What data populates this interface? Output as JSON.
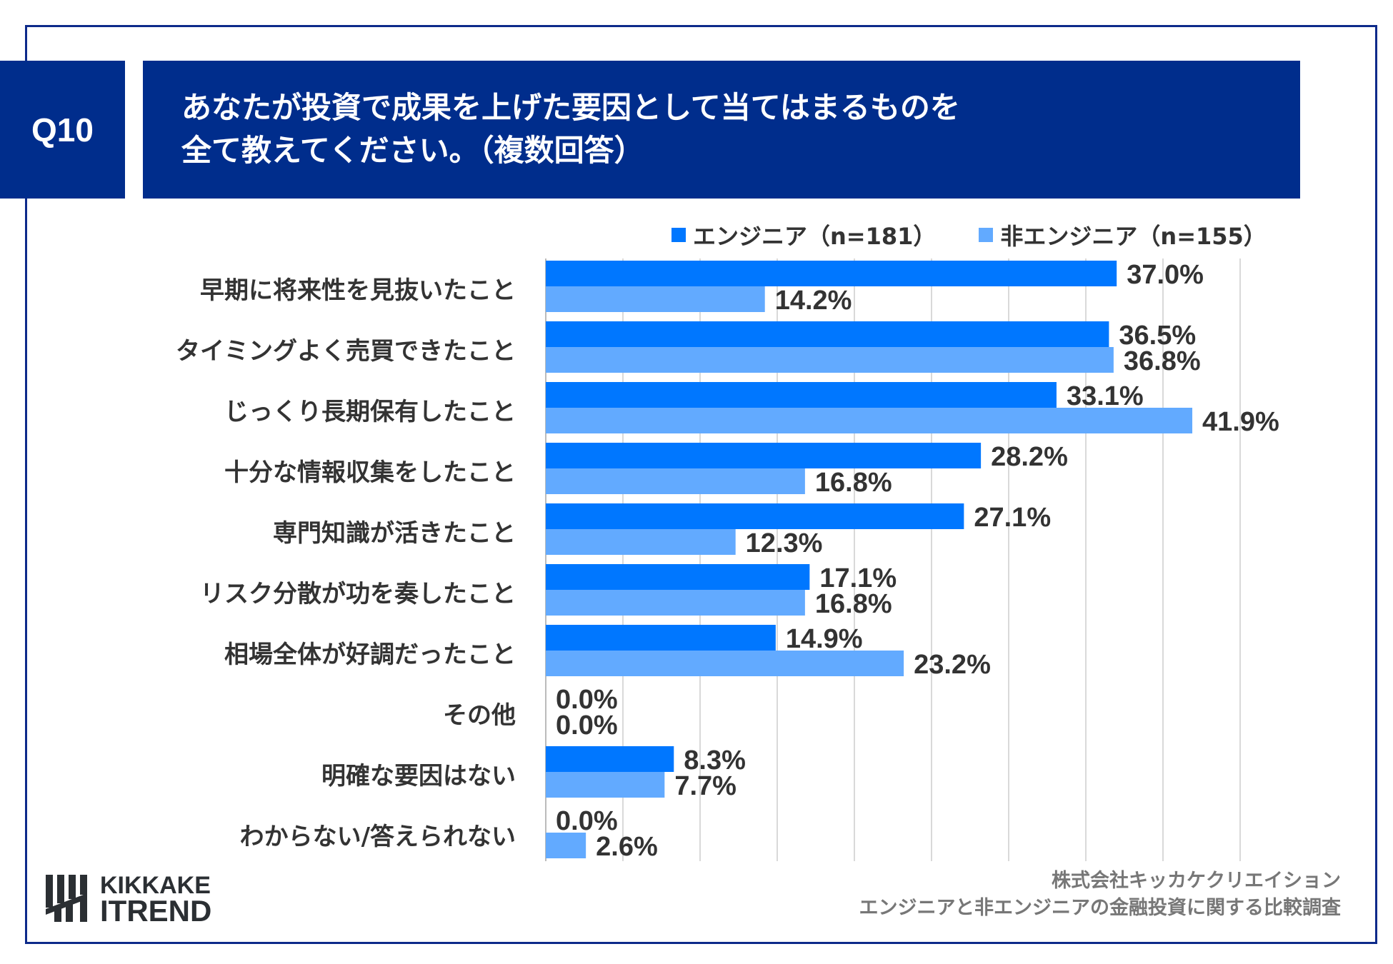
{
  "question": {
    "number": "Q10",
    "title_lines": [
      "あなたが投資で成果を上げた要因として当てはまるものを",
      "全て教えてください。（複数回答）"
    ]
  },
  "colors": {
    "header": "#002d8c",
    "engineer": "#0077ff",
    "non_engineer": "#62aaff",
    "grid": "#d9d9d9"
  },
  "chart_data": {
    "type": "bar",
    "orientation": "horizontal",
    "categories": [
      "早期に将来性を見抜いたこと",
      "タイミングよく売買できたこと",
      "じっくり長期保有したこと",
      "十分な情報収集をしたこと",
      "専門知識が活きたこと",
      "リスク分散が功を奏したこと",
      "相場全体が好調だったこと",
      "その他",
      "明確な要因はない",
      "わからない/答えられない"
    ],
    "series": [
      {
        "name": "エンジニア（n=181）",
        "values": [
          37.0,
          36.5,
          33.1,
          28.2,
          27.1,
          17.1,
          14.9,
          0.0,
          8.3,
          0.0
        ]
      },
      {
        "name": "非エンジニア（n=155）",
        "values": [
          14.2,
          36.8,
          41.9,
          16.8,
          12.3,
          16.8,
          23.2,
          0.0,
          7.7,
          2.6
        ]
      }
    ],
    "xlim": [
      0,
      45
    ],
    "grid": true,
    "value_suffix": "%",
    "legend": "top-right"
  },
  "footer": {
    "lines": [
      "株式会社キッカケクリエイション",
      "エンジニアと非エンジニアの金融投資に関する比較調査"
    ]
  },
  "logo": {
    "line1": "KIKKAKE",
    "line2": "ITREND"
  }
}
